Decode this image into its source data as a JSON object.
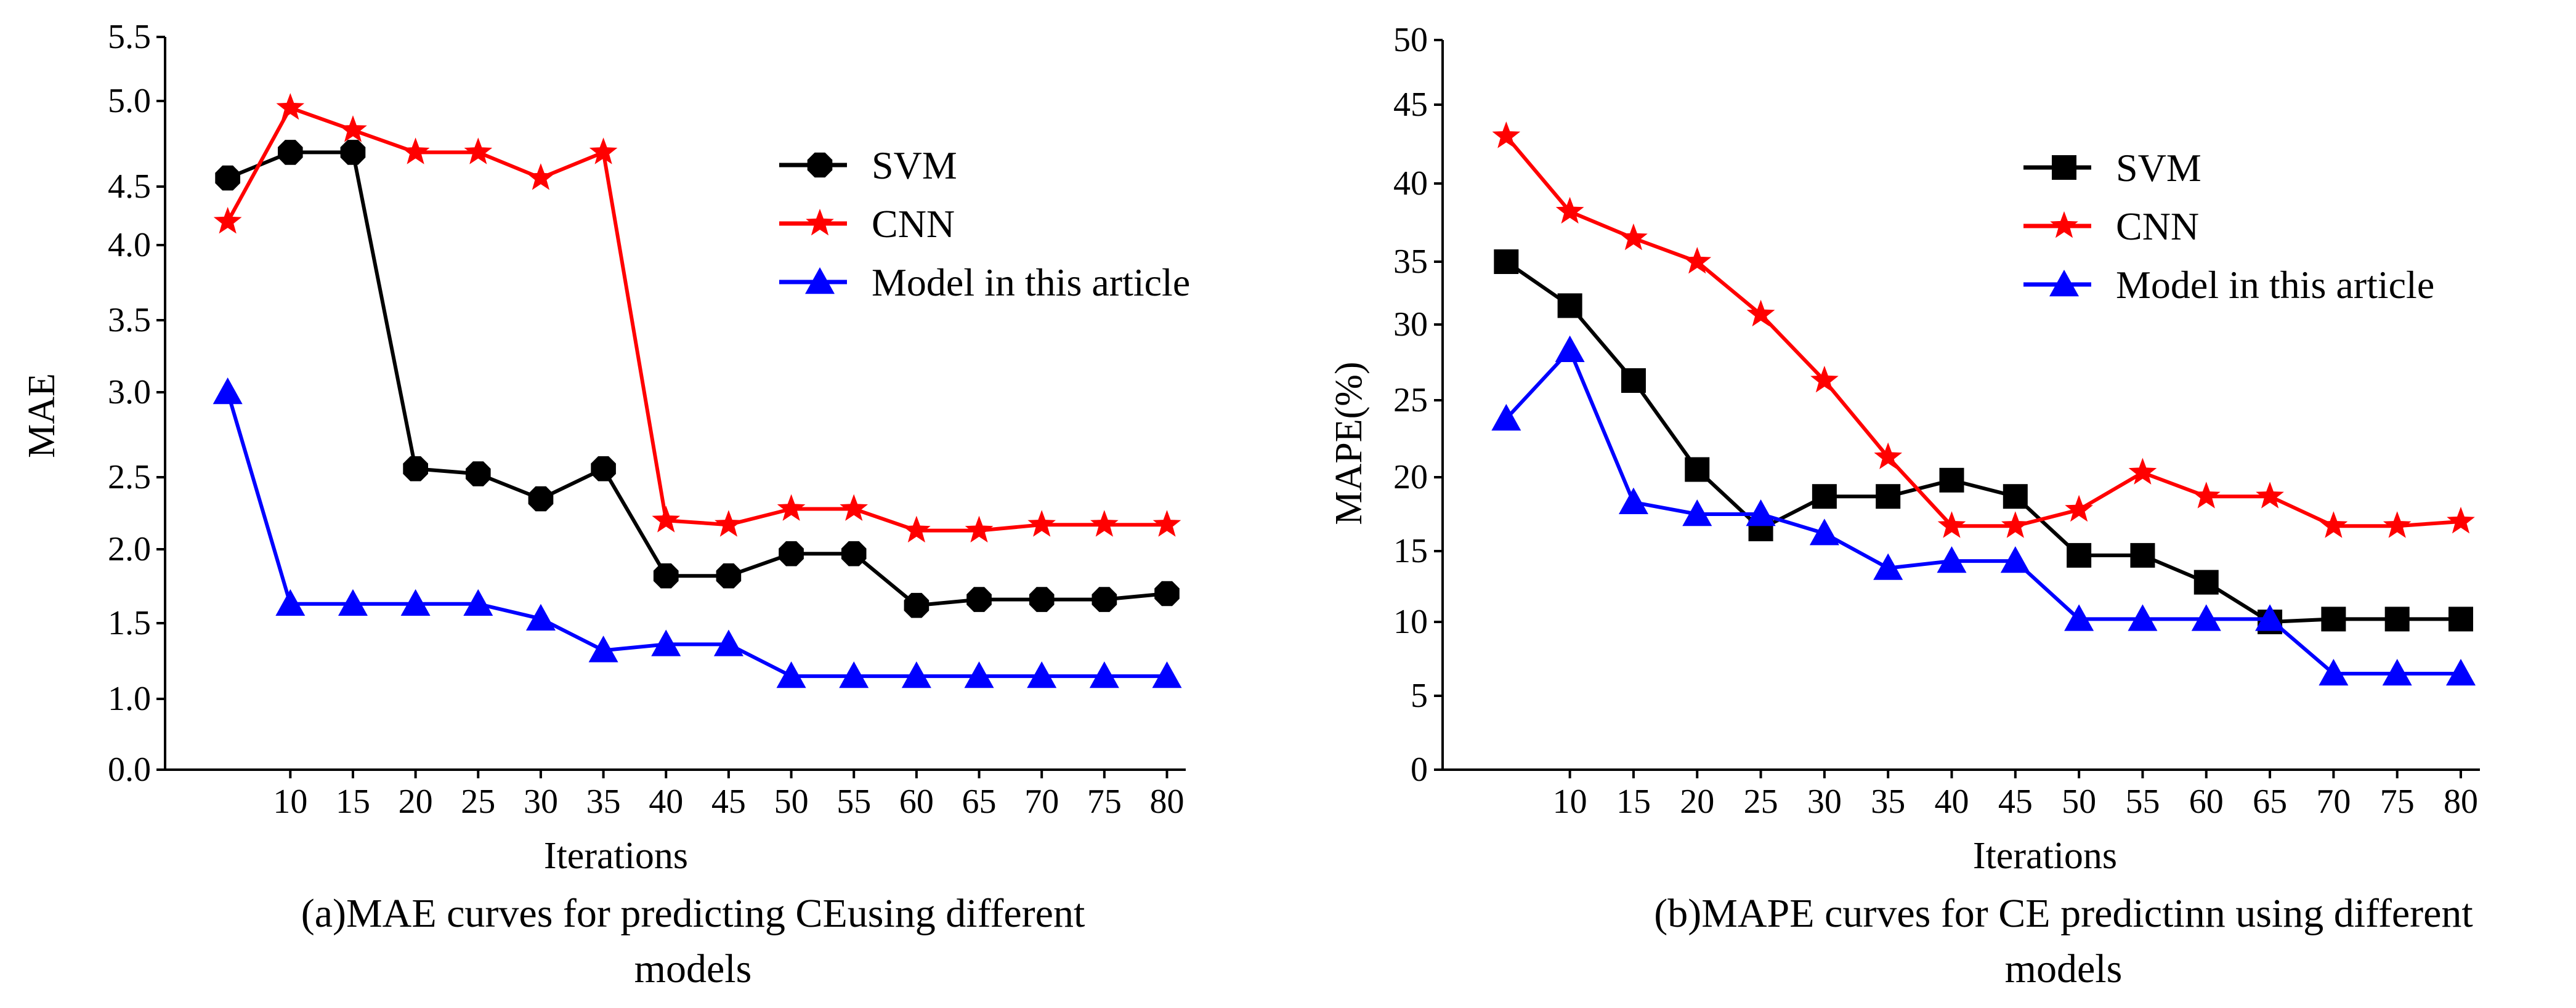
{
  "chart_data": [
    {
      "type": "line",
      "panel": "a",
      "caption_line1": "(a)MAE curves for predicting CEusing different",
      "caption_line2": "models",
      "xlabel": "Iterations",
      "ylabel": "MAE",
      "x": [
        5,
        10,
        15,
        20,
        25,
        30,
        35,
        40,
        45,
        50,
        55,
        60,
        65,
        70,
        75,
        80
      ],
      "x_ticks": [
        "10",
        "15",
        "20",
        "25",
        "30",
        "35",
        "40",
        "45",
        "50",
        "55",
        "60",
        "65",
        "70",
        "75",
        "80"
      ],
      "y_ticks": [
        "0.0",
        "1.0",
        "1.5",
        "2.0",
        "2.5",
        "3.0",
        "3.5",
        "4.0",
        "4.5",
        "5.0",
        "5.5"
      ],
      "legend_position": "top-right",
      "series": [
        {
          "name": "SVM",
          "color": "#000000",
          "marker": "octagon",
          "values": [
            4.55,
            4.7,
            4.7,
            2.55,
            2.52,
            2.35,
            2.55,
            1.82,
            1.82,
            1.97,
            1.97,
            1.62,
            1.66,
            1.66,
            1.66,
            1.7
          ]
        },
        {
          "name": "CNN",
          "color": "#ff0000",
          "marker": "star",
          "values": [
            4.2,
            4.96,
            4.83,
            4.7,
            4.7,
            4.55,
            4.7,
            2.2,
            2.17,
            2.28,
            2.28,
            2.13,
            2.13,
            2.17,
            2.17,
            2.17
          ]
        },
        {
          "name": "Model in this article",
          "color": "#0000ff",
          "marker": "triangle",
          "values": [
            3.0,
            1.63,
            1.63,
            1.63,
            1.63,
            1.53,
            1.32,
            1.36,
            1.36,
            1.15,
            1.15,
            1.15,
            1.15,
            1.15,
            1.15,
            1.15
          ]
        }
      ]
    },
    {
      "type": "line",
      "panel": "b",
      "caption_line1": "(b)MAPE curves for CE predictinn using different",
      "caption_line2": "models",
      "xlabel": "Iterations",
      "ylabel": "MAPE(%)",
      "x": [
        5,
        10,
        15,
        20,
        25,
        30,
        35,
        40,
        45,
        50,
        55,
        60,
        65,
        70,
        75,
        80
      ],
      "x_ticks": [
        "10",
        "15",
        "20",
        "25",
        "30",
        "35",
        "40",
        "45",
        "50",
        "55",
        "60",
        "65",
        "70",
        "75",
        "80"
      ],
      "y_ticks": [
        "0",
        "5",
        "10",
        "15",
        "20",
        "25",
        "30",
        "35",
        "40",
        "45",
        "50"
      ],
      "legend_position": "top-right",
      "series": [
        {
          "name": "SVM",
          "color": "#000000",
          "marker": "square",
          "values": [
            35.0,
            31.5,
            26.3,
            20.5,
            16.5,
            18.7,
            18.7,
            19.8,
            18.7,
            14.7,
            14.7,
            12.8,
            10.0,
            10.2,
            10.2,
            10.2
          ]
        },
        {
          "name": "CNN",
          "color": "#ff0000",
          "marker": "star",
          "values": [
            43.0,
            38.2,
            36.5,
            35.0,
            30.8,
            26.3,
            21.3,
            16.7,
            16.7,
            17.8,
            20.3,
            18.7,
            18.7,
            16.7,
            16.7,
            17.0
          ]
        },
        {
          "name": "Model in this article",
          "color": "#0000ff",
          "marker": "triangle",
          "values": [
            23.8,
            28.3,
            18.3,
            17.5,
            17.5,
            16.2,
            13.8,
            14.3,
            14.3,
            10.2,
            10.2,
            10.2,
            10.2,
            6.5,
            6.5,
            6.5
          ]
        }
      ]
    }
  ]
}
